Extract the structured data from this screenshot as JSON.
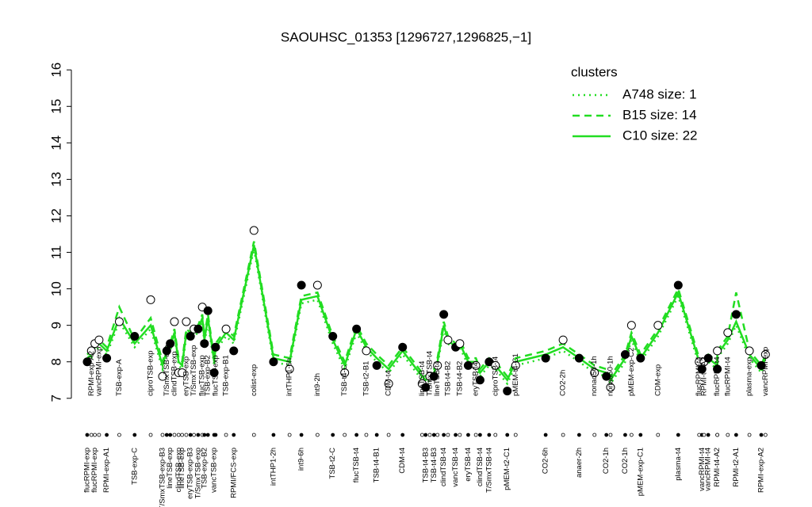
{
  "chart_data": {
    "type": "line",
    "title": "SAOUHSC_01353 [1296727,1296825,−1]",
    "xlim": [
      0,
      100
    ],
    "ylim": [
      6.8,
      16.2
    ],
    "yticks": [
      7,
      8,
      9,
      10,
      11,
      12,
      13,
      14,
      15,
      16
    ],
    "legend": "top-right",
    "legend_title": "clusters",
    "x": [
      1.7,
      2.3,
      2.8,
      3.4,
      4.5,
      6.3,
      8.5,
      10.8,
      12.5,
      13.1,
      13.6,
      14.2,
      14.8,
      15.3,
      15.9,
      16.5,
      17.0,
      17.6,
      18.2,
      18.5,
      19.0,
      19.9,
      20.1,
      21.6,
      22.7,
      25.6,
      28.4,
      30.7,
      32.4,
      34.7,
      36.9,
      38.6,
      40.3,
      41.7,
      43.2,
      44.9,
      46.9,
      49.7,
      50.2,
      50.8,
      51.4,
      51.9,
      52.8,
      53.4,
      54.5,
      55.1,
      56.3,
      57.4,
      58.0,
      59.3,
      60.2,
      61.9,
      63.1,
      67.4,
      69.9,
      72.2,
      74.4,
      76.1,
      76.7,
      78.8,
      79.7,
      81.0,
      83.5,
      86.4,
      89.4,
      89.8,
      90.1,
      90.7,
      92.0,
      92.0,
      93.5,
      94.7,
      96.6,
      98.3,
      98.9
    ],
    "values": [
      8.0,
      8.3,
      8.5,
      8.6,
      8.1,
      9.1,
      8.7,
      9.7,
      7.6,
      8.3,
      8.5,
      9.1,
      7.7,
      7.7,
      9.1,
      8.7,
      8.9,
      8.9,
      9.5,
      8.5,
      9.4,
      7.7,
      8.4,
      8.9,
      8.3,
      11.6,
      8.0,
      7.8,
      10.1,
      10.1,
      8.7,
      7.7,
      8.9,
      8.3,
      7.9,
      7.4,
      8.4,
      7.4,
      7.3,
      7.6,
      7.6,
      7.9,
      9.3,
      8.6,
      8.4,
      8.5,
      7.9,
      7.9,
      7.5,
      8.0,
      7.9,
      7.2,
      7.9,
      8.1,
      8.6,
      8.1,
      7.7,
      7.6,
      7.3,
      8.2,
      9.0,
      8.1,
      9.0,
      10.1,
      8.0,
      7.8,
      8.0,
      8.1,
      7.8,
      8.3,
      8.8,
      9.3,
      8.3,
      7.9,
      8.2
    ],
    "filled": [
      true,
      false,
      false,
      false,
      true,
      false,
      true,
      false,
      false,
      true,
      true,
      false,
      false,
      false,
      false,
      true,
      false,
      true,
      false,
      true,
      true,
      true,
      true,
      false,
      true,
      false,
      true,
      false,
      true,
      false,
      true,
      false,
      true,
      false,
      true,
      false,
      true,
      false,
      true,
      false,
      true,
      false,
      true,
      false,
      true,
      false,
      true,
      false,
      true,
      true,
      false,
      true,
      false,
      true,
      false,
      true,
      false,
      true,
      false,
      true,
      false,
      true,
      false,
      true,
      false,
      true,
      false,
      true,
      true,
      false,
      false,
      true,
      false,
      true,
      false
    ],
    "labels": [
      "flucRPMI-exp",
      "RPMI-exp-A2",
      "flucRPMI-exp",
      "vancRPMI-exp",
      "RPMI-exp-A1",
      "TSB-exp-A",
      "TSB-exp-C",
      "ciproTSB-exp",
      "T/SmxTSB-exp-B3",
      "T/SmxTSB-exp",
      "lineTSB-exp",
      "clindTSB-exp",
      "clindTSB-exp",
      "lineTSB-exp",
      "eryTSB-exp",
      "eryTSB-exp-B3",
      "T/SmxTSB-exp",
      "T/SmxTSB-exp",
      "flucTSB-exp",
      "TSB-exp-B2",
      "TSB-exp-B2",
      "vancTSB-exp",
      "flucTSB-exp",
      "TSB-exp-B1",
      "RPMI/FCS-exp",
      "colist-exp",
      "intTHP1-2h",
      "intTHP1-6h",
      "int9-6h",
      "int9-2h",
      "TSB-t2-C",
      "TSB-t4-C",
      "flucTSB-t4",
      "TSB-t2-B1",
      "TSB-t4-B1",
      "CDM-t4",
      "CDM-t4",
      "lineTSB-t4",
      "TSB-t4-B3",
      "T/SmxTSB-t4",
      "TSB-t4-B3",
      "lineTSB-t4",
      "clindTSB-t4",
      "TSB-t4-B2",
      "vancTSB-t4",
      "TSB-t4-B2",
      "eryTSB-t4",
      "eryTSB-t4",
      "clindTSB-t4",
      "T/SmxTSB-t4",
      "ciproTSB-t4",
      "pMEM-t2-C1",
      "pMEM-t4-C1",
      "CO2-6h",
      "CO2-2h",
      "anaer-2h",
      "nonad50-1h",
      "CO2-1h",
      "nonad50-1h",
      "CO2-1h",
      "pMEM-exp-C2",
      "pMEM-exp-C1",
      "CDM-exp",
      "plasma-t4",
      "flucRPMI-t4",
      "vancRPMI-t4",
      "RPMI-t4-A2",
      "vancRPMI-t4",
      "RPMI-t4-A2",
      "flucRPMI-t4",
      "flucRPMI-t4",
      "RPMI-t2-A1",
      "plasma-exp",
      "RPMI-exp-A2",
      "vancRPMI-exp"
    ],
    "label_side": [
      "bottom",
      "top",
      "bottom",
      "top",
      "bottom",
      "top",
      "bottom",
      "top",
      "bottom",
      "top",
      "bottom",
      "top",
      "bottom",
      "bottom",
      "top",
      "bottom",
      "top",
      "bottom",
      "top",
      "bottom",
      "top",
      "bottom",
      "top",
      "top",
      "bottom",
      "top",
      "bottom",
      "top",
      "bottom",
      "top",
      "bottom",
      "top",
      "bottom",
      "top",
      "bottom",
      "top",
      "bottom",
      "top",
      "bottom",
      "top",
      "bottom",
      "top",
      "bottom",
      "top",
      "bottom",
      "top",
      "bottom",
      "top",
      "bottom",
      "bottom",
      "top",
      "bottom",
      "top",
      "bottom",
      "top",
      "bottom",
      "top",
      "bottom",
      "top",
      "bottom",
      "top",
      "bottom",
      "top",
      "bottom",
      "top",
      "bottom",
      "top",
      "bottom",
      "bottom",
      "top",
      "top",
      "bottom",
      "top",
      "bottom",
      "top"
    ],
    "series": [
      {
        "name": "A748 size: 1",
        "color": "#22dd22",
        "dash": "dotted",
        "values": [
          8.0,
          8.1,
          8.3,
          8.4,
          8.2,
          9.1,
          8.4,
          8.9,
          7.8,
          8.2,
          8.3,
          8.7,
          7.9,
          7.8,
          8.7,
          8.6,
          8.7,
          8.8,
          9.1,
          8.5,
          9.1,
          7.9,
          8.3,
          8.7,
          8.5,
          11.1,
          8.0,
          7.9,
          9.6,
          9.7,
          8.5,
          7.8,
          8.8,
          8.3,
          8.0,
          7.7,
          8.2,
          7.5,
          7.4,
          7.5,
          7.6,
          7.9,
          8.9,
          8.5,
          8.3,
          8.4,
          7.9,
          7.9,
          7.6,
          7.9,
          7.8,
          7.4,
          7.9,
          8.1,
          8.3,
          8.0,
          7.7,
          7.6,
          7.4,
          8.0,
          8.6,
          8.0,
          8.7,
          9.8,
          7.9,
          7.8,
          7.9,
          8.0,
          7.8,
          8.1,
          8.5,
          9.0,
          8.1,
          7.7,
          8.0
        ]
      },
      {
        "name": "B15 size: 14",
        "color": "#22dd22",
        "dash": "dashed",
        "values": [
          8.2,
          8.3,
          8.5,
          8.6,
          8.4,
          9.5,
          8.6,
          9.2,
          8.0,
          8.4,
          8.5,
          8.9,
          8.1,
          8.0,
          8.9,
          8.8,
          8.9,
          9.0,
          9.3,
          8.7,
          9.3,
          8.1,
          8.5,
          8.9,
          8.7,
          11.3,
          8.2,
          8.1,
          9.8,
          9.9,
          8.7,
          8.0,
          9.0,
          8.5,
          8.2,
          7.9,
          8.4,
          7.7,
          7.6,
          7.7,
          7.8,
          8.1,
          9.1,
          8.7,
          8.5,
          8.6,
          8.1,
          8.1,
          7.8,
          8.1,
          8.0,
          7.6,
          8.1,
          8.3,
          8.5,
          8.2,
          7.9,
          7.8,
          7.6,
          8.2,
          8.8,
          8.2,
          8.9,
          10.0,
          8.1,
          8.0,
          8.1,
          8.2,
          8.0,
          8.3,
          8.7,
          9.9,
          8.3,
          7.9,
          8.2
        ]
      },
      {
        "name": "C10 size: 22",
        "color": "#22dd22",
        "dash": "solid",
        "values": [
          8.1,
          8.2,
          8.4,
          8.5,
          8.3,
          9.2,
          8.5,
          9.0,
          7.9,
          8.3,
          8.4,
          8.8,
          8.0,
          7.9,
          8.8,
          8.7,
          8.8,
          8.9,
          9.2,
          8.6,
          9.2,
          8.0,
          8.4,
          8.8,
          8.6,
          11.2,
          8.1,
          8.0,
          9.7,
          9.8,
          8.6,
          7.9,
          8.9,
          8.4,
          8.1,
          7.8,
          8.3,
          7.6,
          7.5,
          7.6,
          7.7,
          8.0,
          9.0,
          8.6,
          8.4,
          8.5,
          8.0,
          8.0,
          7.7,
          8.0,
          7.9,
          7.5,
          8.0,
          8.2,
          8.4,
          8.1,
          7.8,
          7.7,
          7.5,
          8.1,
          8.7,
          8.1,
          8.8,
          9.9,
          8.0,
          7.9,
          8.0,
          8.1,
          7.9,
          8.2,
          8.6,
          9.1,
          8.2,
          7.8,
          8.1
        ]
      }
    ]
  }
}
